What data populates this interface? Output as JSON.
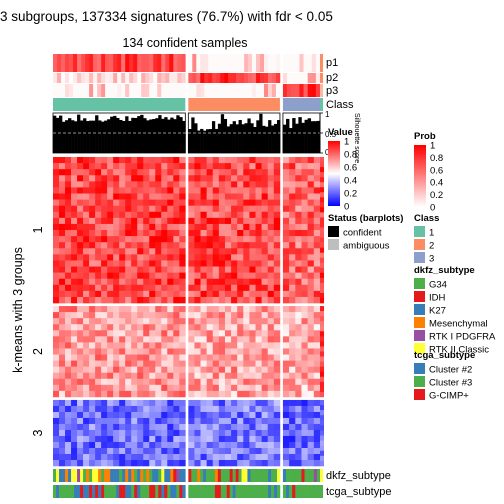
{
  "chart_data": {
    "type": "heatmap",
    "title": "3 subgroups, 137334 signatures (76.7%) with fdr < 0.05",
    "subtitle": "134 confident samples",
    "row_title": "k-means with 3 groups",
    "row_groups": [
      "1",
      "2",
      "3"
    ],
    "row_group_fraction": [
      0.482,
      0.3,
      0.218
    ],
    "column_groups": [
      "1",
      "2",
      "3"
    ],
    "column_group_fraction": [
      0.507,
      0.351,
      0.142
    ],
    "top_annotations": [
      "p1",
      "p2",
      "p3",
      "Class"
    ],
    "silhouette_label": "Silhouette score",
    "silhouette_ticks": [
      "1",
      "0.5",
      "0"
    ],
    "bottom_annotations": [
      "dkfz_subtype",
      "tcga_subtype"
    ],
    "legends": {
      "value": {
        "title": "Value",
        "ticks": [
          "1",
          "0.8",
          "0.6",
          "0.4",
          "0.2",
          "0"
        ],
        "gradient": [
          "#ff0000",
          "#ffffff",
          "#0000ff"
        ]
      },
      "prob": {
        "title": "Prob",
        "ticks": [
          "1",
          "0.8",
          "0.6",
          "0.4",
          "0.2",
          "0"
        ],
        "gradient": [
          "#ff0000",
          "#ffffff"
        ]
      },
      "status": {
        "title": "Status (barplots)",
        "items": [
          {
            "label": "confident",
            "color": "#000000"
          },
          {
            "label": "ambiguous",
            "color": "#bebebe"
          }
        ]
      },
      "class": {
        "title": "Class",
        "items": [
          {
            "label": "1",
            "color": "#66c2a5"
          },
          {
            "label": "2",
            "color": "#fc8d62"
          },
          {
            "label": "3",
            "color": "#8da0cb"
          }
        ]
      },
      "dkfz_subtype": {
        "title": "dkfz_subtype",
        "items": [
          {
            "label": "G34",
            "color": "#4daf4a"
          },
          {
            "label": "IDH",
            "color": "#e41a1c"
          },
          {
            "label": "K27",
            "color": "#377eb8"
          },
          {
            "label": "Mesenchymal",
            "color": "#ff7f00"
          },
          {
            "label": "RTK I PDGFRA",
            "color": "#984ea3"
          },
          {
            "label": "RTK II Classic",
            "color": "#ffff33"
          }
        ]
      },
      "tcga_subtype": {
        "title": "tcga_subtype",
        "items": [
          {
            "label": "Cluster #2",
            "color": "#377eb8"
          },
          {
            "label": "Cluster #3",
            "color": "#4daf4a"
          },
          {
            "label": "G-CIMP+",
            "color": "#e41a1c"
          }
        ]
      }
    }
  }
}
